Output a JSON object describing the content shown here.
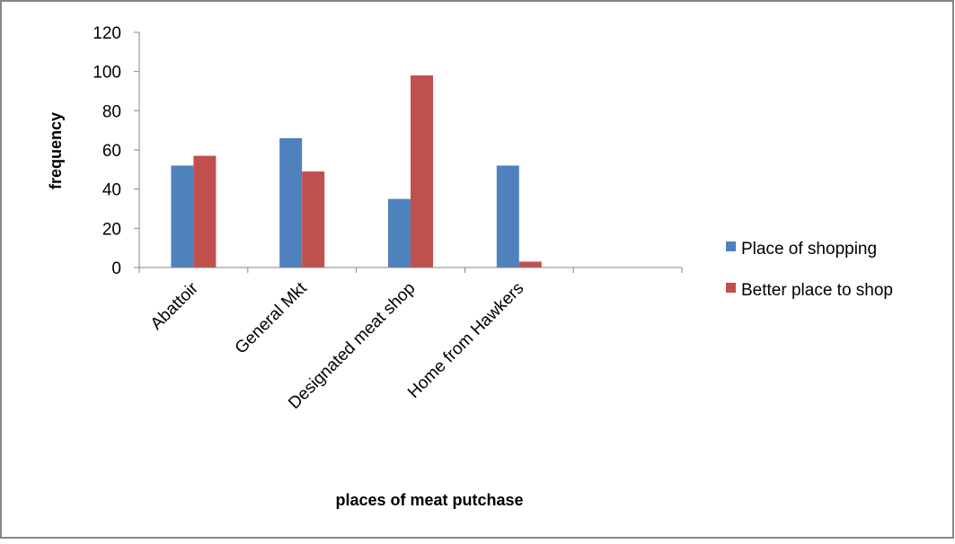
{
  "chart_data": {
    "type": "bar",
    "title": "",
    "xlabel": "places of meat putchase",
    "ylabel": "frequency",
    "categories": [
      "Abattoir",
      "General Mkt",
      "Designated meat shop",
      "Home from Hawkers",
      ""
    ],
    "series": [
      {
        "name": "Place of shopping",
        "values": [
          52,
          66,
          35,
          52,
          null
        ],
        "color": "#4f81bd"
      },
      {
        "name": "Better place to shop",
        "values": [
          57,
          49,
          98,
          3,
          null
        ],
        "color": "#c0504d"
      }
    ],
    "ylim": [
      0,
      120
    ],
    "yticks": [
      0,
      20,
      40,
      60,
      80,
      100,
      120
    ],
    "grid": false,
    "legend_position": "right"
  }
}
